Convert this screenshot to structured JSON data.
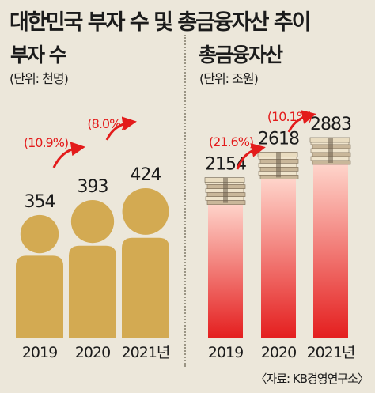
{
  "title": "대한민국 부자 수 및 총금융자산 추이",
  "source": "〈자료: KB경영연구소〉",
  "colors": {
    "background": "#ece7da",
    "person": "#d3aa52",
    "bar_top": "#ffd9cf",
    "bar_bottom": "#e41e1e",
    "arrow": "#e31b1b",
    "growth_text": "#e31b1b"
  },
  "chart_data": [
    {
      "type": "bar",
      "title": "부자 수",
      "unit": "(단위: 천명)",
      "categories": [
        "2019",
        "2020",
        "2021년"
      ],
      "values": [
        354,
        393,
        424
      ],
      "value_labels": [
        "354",
        "393",
        "424"
      ],
      "growth_labels": [
        "(10.9%)",
        "(8.0%)"
      ],
      "marks": "person-icon"
    },
    {
      "type": "bar",
      "title": "총금융자산",
      "unit": "(단위: 조원)",
      "categories": [
        "2019",
        "2020",
        "2021년"
      ],
      "values": [
        2154,
        2618,
        2883
      ],
      "value_labels": [
        "2154",
        "2618",
        "2883"
      ],
      "growth_labels": [
        "(21.6%)",
        "(10.1%)"
      ],
      "marks": "banknote-stack-icon"
    }
  ]
}
